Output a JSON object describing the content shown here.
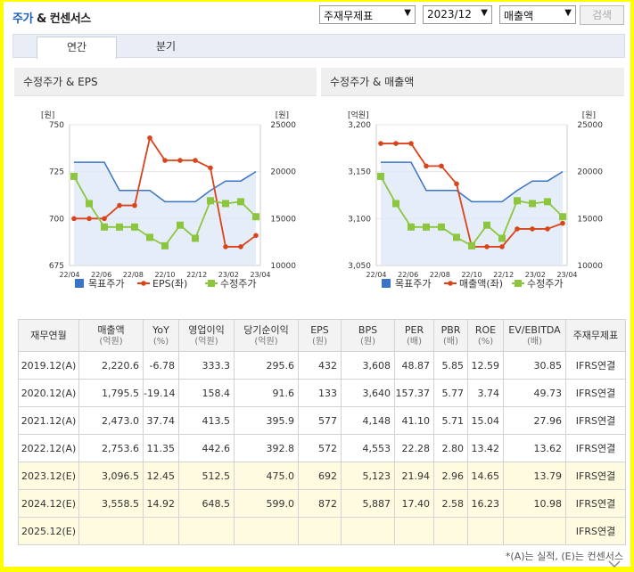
{
  "header": {
    "title_main": "주가",
    "title_rest": " & 컨센서스",
    "select_report": "주재무제표",
    "select_period": "2023/12",
    "select_item": "매출액",
    "search_label": "검색"
  },
  "tabs": [
    {
      "label": "연간",
      "active": true
    },
    {
      "label": "분기",
      "active": false
    }
  ],
  "charts": [
    {
      "title": "수정주가 & EPS",
      "left_unit": "[원]",
      "right_unit": "[원]",
      "left_ticks": [
        "750",
        "725",
        "700",
        "675"
      ],
      "right_ticks": [
        "25000",
        "20000",
        "15000",
        "10000"
      ],
      "x_labels": [
        "22/04",
        "22/06",
        "22/08",
        "22/10",
        "22/12",
        "23/02",
        "23/04"
      ],
      "legend": [
        "목표주가",
        "EPS(좌)",
        "수정주가"
      ]
    },
    {
      "title": "수정주가 & 매출액",
      "left_unit": "[억원]",
      "right_unit": "[원]",
      "left_ticks": [
        "3,200",
        "3,150",
        "3,100",
        "3,050"
      ],
      "right_ticks": [
        "25000",
        "20000",
        "15000",
        "10000"
      ],
      "x_labels": [
        "22/04",
        "22/06",
        "22/08",
        "22/10",
        "22/12",
        "23/02",
        "23/04"
      ],
      "legend": [
        "목표주가",
        "매출액(좌)",
        "수정주가"
      ]
    }
  ],
  "chart_data": [
    {
      "type": "line",
      "title": "수정주가 & EPS",
      "x": [
        "22/04",
        "22/05",
        "22/06",
        "22/07",
        "22/08",
        "22/09",
        "22/10",
        "22/11",
        "22/12",
        "23/01",
        "23/02",
        "23/03",
        "23/04"
      ],
      "series": [
        {
          "name": "목표주가",
          "axis": "right",
          "type": "area",
          "values": [
            21000,
            21000,
            21000,
            18000,
            18000,
            18000,
            16800,
            16800,
            16800,
            18000,
            19000,
            19000,
            20000
          ],
          "color": "#3b73c6"
        },
        {
          "name": "EPS(좌)",
          "axis": "left",
          "values": [
            700,
            700,
            700,
            707,
            707,
            743,
            731,
            731,
            731,
            727,
            685,
            685,
            691
          ],
          "color": "#d9441a"
        },
        {
          "name": "수정주가",
          "axis": "right",
          "values": [
            19500,
            16600,
            14100,
            14100,
            14100,
            13000,
            12100,
            14300,
            12900,
            16900,
            16600,
            16800,
            15200
          ],
          "color": "#8cc63f"
        }
      ],
      "y_left_range": [
        675,
        750
      ],
      "y_right_range": [
        10000,
        25000
      ],
      "legend_position": "bottom"
    },
    {
      "type": "line",
      "title": "수정주가 & 매출액",
      "x": [
        "22/04",
        "22/05",
        "22/06",
        "22/07",
        "22/08",
        "22/09",
        "22/10",
        "22/11",
        "22/12",
        "23/01",
        "23/02",
        "23/03",
        "23/04"
      ],
      "series": [
        {
          "name": "목표주가",
          "axis": "right",
          "type": "area",
          "values": [
            21000,
            21000,
            21000,
            18000,
            18000,
            18000,
            16800,
            16800,
            16800,
            18000,
            19000,
            19000,
            20000
          ],
          "color": "#3b73c6"
        },
        {
          "name": "매출액(좌)",
          "axis": "left",
          "values": [
            3180,
            3180,
            3180,
            3156,
            3156,
            3137,
            3070,
            3070,
            3070,
            3089,
            3089,
            3089,
            3095
          ],
          "color": "#d9441a"
        },
        {
          "name": "수정주가",
          "axis": "right",
          "values": [
            19500,
            16600,
            14100,
            14100,
            14100,
            13000,
            12100,
            14300,
            12900,
            16900,
            16600,
            16800,
            15200
          ],
          "color": "#8cc63f"
        }
      ],
      "y_left_range": [
        3050,
        3200
      ],
      "y_right_range": [
        10000,
        25000
      ],
      "legend_position": "bottom"
    }
  ],
  "table": {
    "columns": [
      {
        "label": "재무연월",
        "unit": ""
      },
      {
        "label": "매출액",
        "unit": "(억원)"
      },
      {
        "label": "YoY",
        "unit": "(%)"
      },
      {
        "label": "영업이익",
        "unit": "(억원)"
      },
      {
        "label": "당기순이익",
        "unit": "(억원)"
      },
      {
        "label": "EPS",
        "unit": "(원)"
      },
      {
        "label": "BPS",
        "unit": "(원)"
      },
      {
        "label": "PER",
        "unit": "(배)"
      },
      {
        "label": "PBR",
        "unit": "(배)"
      },
      {
        "label": "ROE",
        "unit": "(%)"
      },
      {
        "label": "EV/EBITDA",
        "unit": "(배)"
      },
      {
        "label": "주재무제표",
        "unit": ""
      }
    ],
    "rows": [
      {
        "estimate": false,
        "cells": [
          "2019.12(A)",
          "2,220.6",
          "-6.78",
          "333.3",
          "295.6",
          "432",
          "3,608",
          "48.87",
          "5.85",
          "12.59",
          "30.85",
          "IFRS연결"
        ]
      },
      {
        "estimate": false,
        "cells": [
          "2020.12(A)",
          "1,795.5",
          "-19.14",
          "158.4",
          "91.6",
          "133",
          "3,640",
          "157.37",
          "5.77",
          "3.74",
          "49.73",
          "IFRS연결"
        ]
      },
      {
        "estimate": false,
        "cells": [
          "2021.12(A)",
          "2,473.0",
          "37.74",
          "413.5",
          "395.9",
          "577",
          "4,148",
          "41.10",
          "5.71",
          "15.04",
          "27.96",
          "IFRS연결"
        ]
      },
      {
        "estimate": false,
        "cells": [
          "2022.12(A)",
          "2,753.6",
          "11.35",
          "442.6",
          "392.8",
          "572",
          "4,553",
          "22.28",
          "2.80",
          "13.42",
          "13.62",
          "IFRS연결"
        ]
      },
      {
        "estimate": true,
        "cells": [
          "2023.12(E)",
          "3,096.5",
          "12.45",
          "512.5",
          "475.0",
          "692",
          "5,123",
          "21.94",
          "2.96",
          "14.65",
          "13.79",
          "IFRS연결"
        ]
      },
      {
        "estimate": true,
        "cells": [
          "2024.12(E)",
          "3,558.5",
          "14.92",
          "648.5",
          "599.0",
          "872",
          "5,887",
          "17.40",
          "2.58",
          "16.23",
          "10.98",
          "IFRS연결"
        ]
      },
      {
        "estimate": true,
        "cells": [
          "2025.12(E)",
          "",
          "",
          "",
          "",
          "",
          "",
          "",
          "",
          "",
          "",
          "IFRS연결"
        ]
      }
    ]
  },
  "footnote": "*(A)는 실적, (E)는 컨센서스",
  "icons": {
    "expand": "chevron-down-icon"
  }
}
